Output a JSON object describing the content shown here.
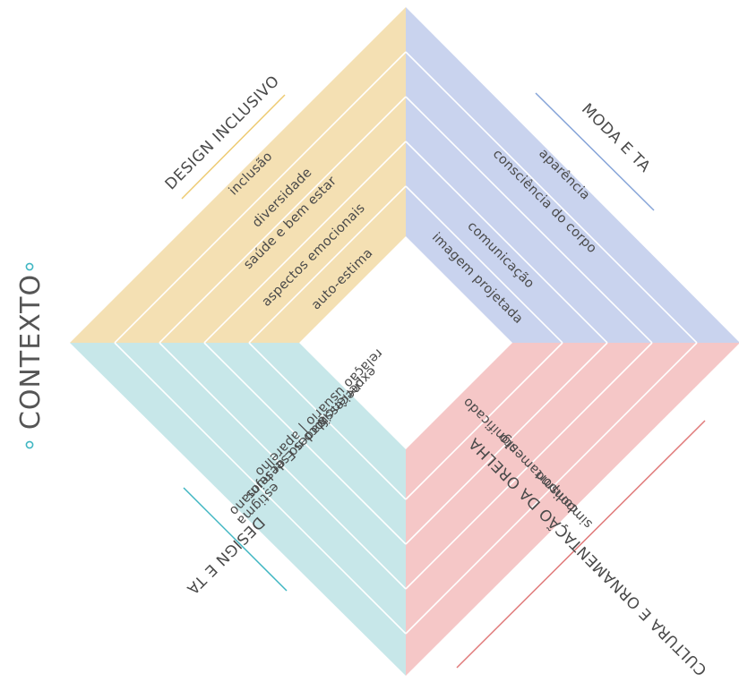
{
  "context": {
    "label": "CONTEXTO"
  },
  "quadrants": {
    "design_inclusivo": {
      "title": "DESIGN INCLUSIVO",
      "color": "#f4e0b3",
      "line_color": "#eecb73",
      "items": [
        "inclusão",
        "diversidade",
        "saúde e bem estar",
        "aspectos emocionais",
        "auto-estima"
      ]
    },
    "moda_e_ta": {
      "title": "MODA E TA",
      "color": "#c9d3ee",
      "line_color": "#86a4d8",
      "items": [
        "aparência",
        "consciência do corpo",
        "comunicação",
        "imagem projetada"
      ]
    },
    "cultura": {
      "title": "CULTURA E ORNAMENTAÇÃO DA ORELHA",
      "color": "#f5c7c7",
      "line_color": "#e07a7a",
      "items": [
        "simbolismo",
        "comportamento",
        "significado"
      ]
    },
    "design_e_ta": {
      "title": "DESIGN E TA",
      "color": "#c7e7e9",
      "line_color": "#3fb6c2",
      "items": [
        "estigma",
        "foco no ser humano",
        "necessidades E desejos",
        "relação usuário | aparelho",
        "experiência"
      ]
    }
  },
  "accent_color": "#3fb6c2"
}
